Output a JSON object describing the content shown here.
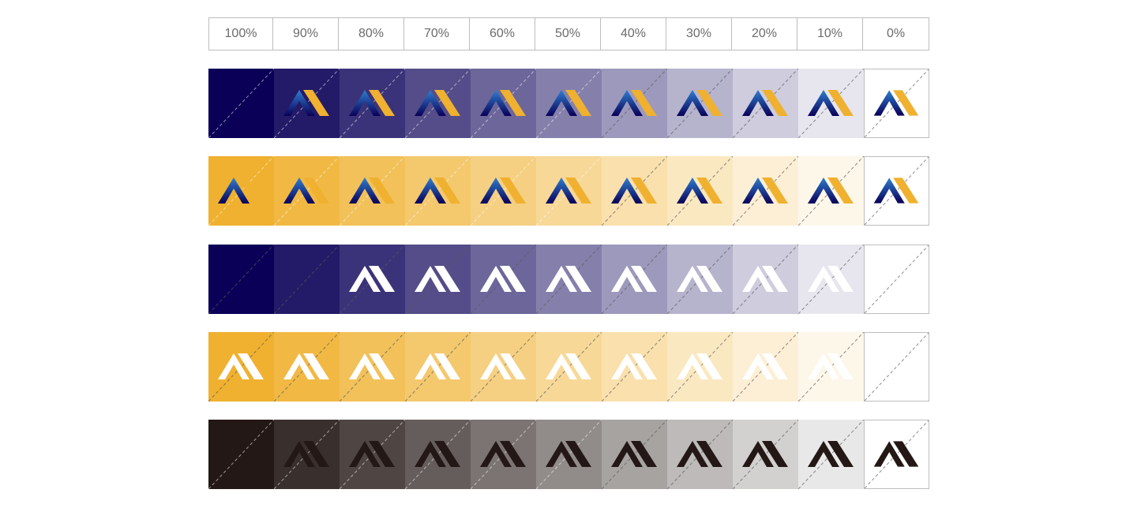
{
  "percent_labels": [
    "100%",
    "90%",
    "80%",
    "70%",
    "60%",
    "50%",
    "40%",
    "30%",
    "20%",
    "10%",
    "0%"
  ],
  "colors": {
    "navy": "#0a0057",
    "gold": "#efb12f",
    "charcoal": "#231815",
    "white": "#ffffff",
    "logo_gradient_top": "#2e7fd1",
    "logo_gradient_bottom": "#0a0057"
  },
  "rows": [
    {
      "name": "navy-background-color-logo",
      "base_color": "#0a0057",
      "logo": "color",
      "logo_visible_from_percent": 90
    },
    {
      "name": "gold-background-color-logo",
      "base_color": "#efb12f",
      "logo": "color",
      "logo_visible_from_percent": 100
    },
    {
      "name": "navy-background-white-logo",
      "base_color": "#0a0057",
      "logo": "white",
      "logo_visible_from_percent": 80
    },
    {
      "name": "gold-background-white-logo",
      "base_color": "#efb12f",
      "logo": "white",
      "logo_visible_from_percent": 100
    },
    {
      "name": "charcoal-background-dark-logo",
      "base_color": "#231815",
      "logo": "dark",
      "logo_visible_from_percent": 90
    }
  ]
}
